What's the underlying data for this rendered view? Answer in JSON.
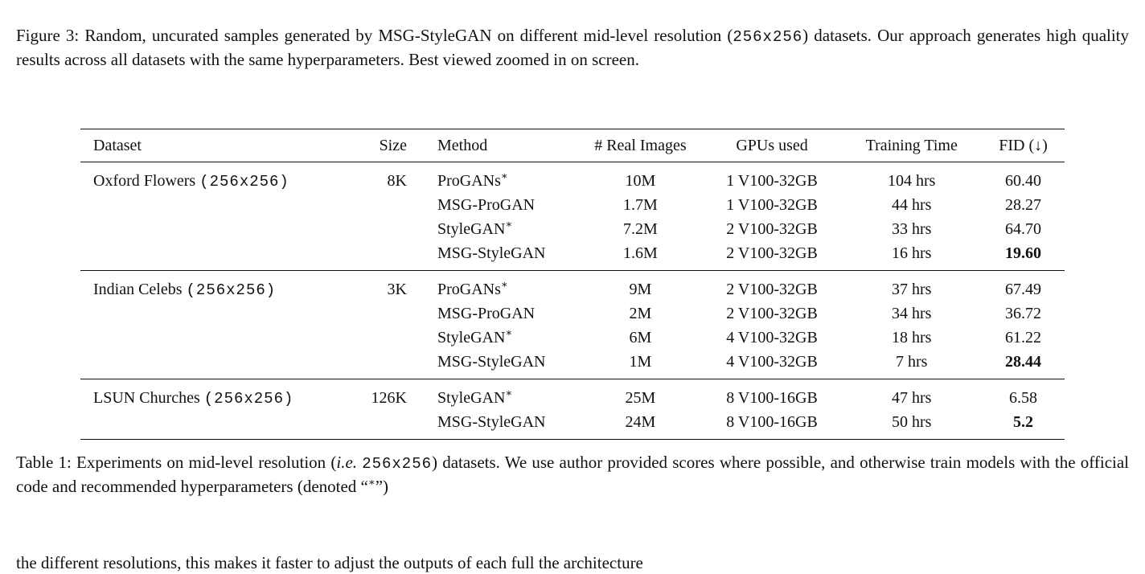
{
  "figure_caption": {
    "label": "Figure 3:",
    "text_before": "Random, uncurated samples generated by MSG-StyleGAN on different mid-level resolution (",
    "resolution": "256x256",
    "text_after": ") datasets. Our approach generates high quality results across all datasets with the same hyperparameters. Best viewed zoomed in on screen."
  },
  "table": {
    "headers": {
      "dataset": "Dataset",
      "size": "Size",
      "method": "Method",
      "real_images": "# Real Images",
      "gpus": "GPUs used",
      "training_time": "Training Time",
      "fid": "FID (↓)"
    },
    "groups": [
      {
        "dataset": "Oxford Flowers",
        "resolution": "(256x256)",
        "size": "8K",
        "rows": [
          {
            "method": "ProGANs",
            "star": "∗",
            "real_images": "10M",
            "gpus": "1 V100-32GB",
            "time": "104 hrs",
            "fid": "60.40"
          },
          {
            "method": "MSG-ProGAN",
            "star": "",
            "real_images": "1.7M",
            "gpus": "1 V100-32GB",
            "time": "44 hrs",
            "fid": "28.27"
          },
          {
            "method": "StyleGAN",
            "star": "∗",
            "real_images": "7.2M",
            "gpus": "2 V100-32GB",
            "time": "33 hrs",
            "fid": "64.70"
          },
          {
            "method": "MSG-StyleGAN",
            "star": "",
            "real_images": "1.6M",
            "gpus": "2 V100-32GB",
            "time": "16 hrs",
            "fid": "19.60"
          }
        ]
      },
      {
        "dataset": "Indian Celebs",
        "resolution": "(256x256)",
        "size": "3K",
        "rows": [
          {
            "method": "ProGANs",
            "star": "∗",
            "real_images": "9M",
            "gpus": "2 V100-32GB",
            "time": "37 hrs",
            "fid": "67.49"
          },
          {
            "method": "MSG-ProGAN",
            "star": "",
            "real_images": "2M",
            "gpus": "2 V100-32GB",
            "time": "34 hrs",
            "fid": "36.72"
          },
          {
            "method": "StyleGAN",
            "star": "∗",
            "real_images": "6M",
            "gpus": "4 V100-32GB",
            "time": "18 hrs",
            "fid": "61.22"
          },
          {
            "method": "MSG-StyleGAN",
            "star": "",
            "real_images": "1M",
            "gpus": "4 V100-32GB",
            "time": "7 hrs",
            "fid": "28.44"
          }
        ]
      },
      {
        "dataset": "LSUN Churches",
        "resolution": "(256x256)",
        "size": "126K",
        "rows": [
          {
            "method": "StyleGAN",
            "star": "∗",
            "real_images": "25M",
            "gpus": "8 V100-16GB",
            "time": "47 hrs",
            "fid": "6.58"
          },
          {
            "method": "MSG-StyleGAN",
            "star": "",
            "real_images": "24M",
            "gpus": "8 V100-16GB",
            "time": "50 hrs",
            "fid": "5.2"
          }
        ]
      }
    ]
  },
  "table_caption": {
    "label": "Table 1:",
    "text_a": "Experiments on mid-level resolution (",
    "ie": "i.e.",
    "resolution": "256x256",
    "text_b": ") datasets. We use author provided scores where possible, and otherwise train models with the official code and recommended hyperparameters (denoted “",
    "star": "∗",
    "text_c": "”)"
  },
  "footnote_fragment": "the different resolutions, this makes it faster to adjust the outputs of each full the architecture"
}
